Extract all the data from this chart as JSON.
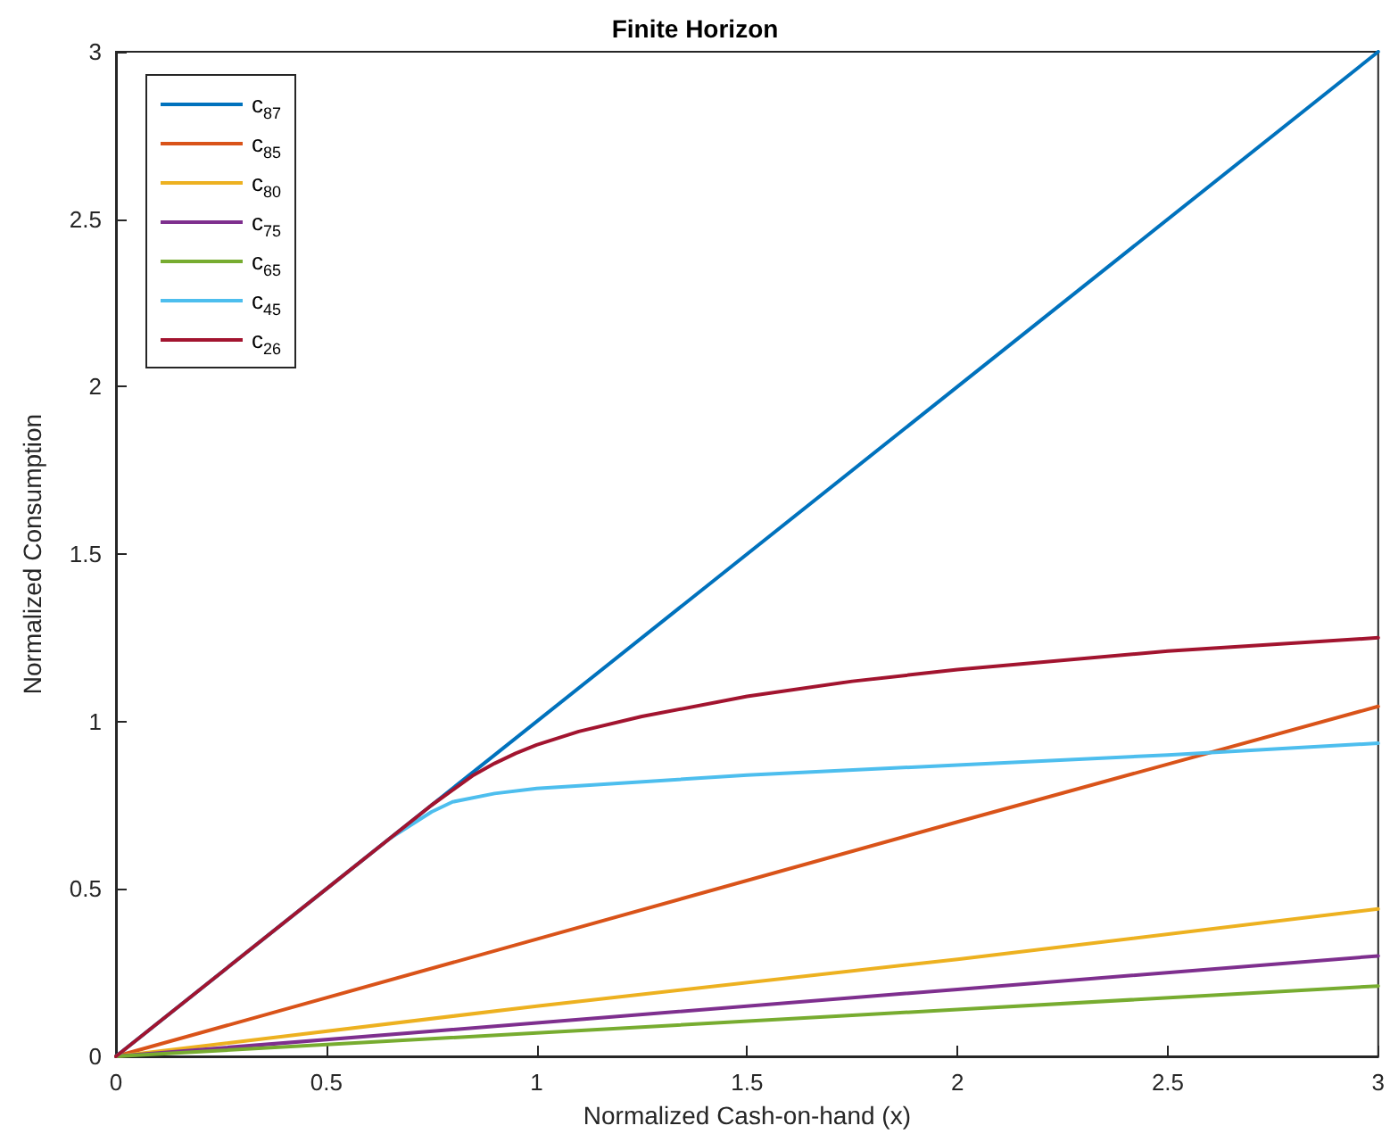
{
  "chart_data": {
    "type": "line",
    "title": "Finite Horizon",
    "xlabel": "Normalized Cash-on-hand (x)",
    "ylabel": "Normalized Consumption",
    "xlim": [
      0,
      3
    ],
    "ylim": [
      0,
      3
    ],
    "xticks": [
      0,
      0.5,
      1,
      1.5,
      2,
      2.5,
      3
    ],
    "yticks": [
      0,
      0.5,
      1,
      1.5,
      2,
      2.5,
      3
    ],
    "grid": false,
    "legend": "top left",
    "marker": "none",
    "line_style": "solid",
    "series": [
      {
        "name": "c$_{87}$",
        "color": "#0072bd",
        "x": [
          0,
          3
        ],
        "values": [
          0,
          3
        ]
      },
      {
        "name": "c$_{85}$",
        "color": "#d95319",
        "x": [
          0,
          1,
          2,
          3
        ],
        "values": [
          0,
          0.35,
          0.7,
          1.045
        ]
      },
      {
        "name": "c$_{80}$",
        "color": "#edb120",
        "x": [
          0,
          1,
          2,
          3
        ],
        "values": [
          0,
          0.15,
          0.29,
          0.44
        ]
      },
      {
        "name": "c$_{75}$",
        "color": "#7e2f8e",
        "x": [
          0,
          1,
          2,
          3
        ],
        "values": [
          0,
          0.1,
          0.2,
          0.3
        ]
      },
      {
        "name": "c$_{65}$",
        "color": "#77ac30",
        "x": [
          0,
          1,
          2,
          3
        ],
        "values": [
          0,
          0.07,
          0.14,
          0.21
        ]
      },
      {
        "name": "c$_{45}$",
        "color": "#4dbeee",
        "x": [
          0,
          0.5,
          0.65,
          0.7,
          0.75,
          0.8,
          0.9,
          1,
          1.5,
          2,
          2.5,
          3
        ],
        "values": [
          0,
          0.5,
          0.65,
          0.69,
          0.73,
          0.76,
          0.785,
          0.8,
          0.84,
          0.87,
          0.9,
          0.935
        ]
      },
      {
        "name": "c$_{26}$",
        "color": "#a2142f",
        "x": [
          0,
          0.5,
          0.75,
          0.85,
          0.9,
          0.95,
          1,
          1.1,
          1.25,
          1.5,
          1.75,
          2,
          2.5,
          3
        ],
        "values": [
          0,
          0.5,
          0.75,
          0.84,
          0.875,
          0.905,
          0.93,
          0.97,
          1.015,
          1.075,
          1.12,
          1.155,
          1.21,
          1.25
        ]
      }
    ]
  }
}
